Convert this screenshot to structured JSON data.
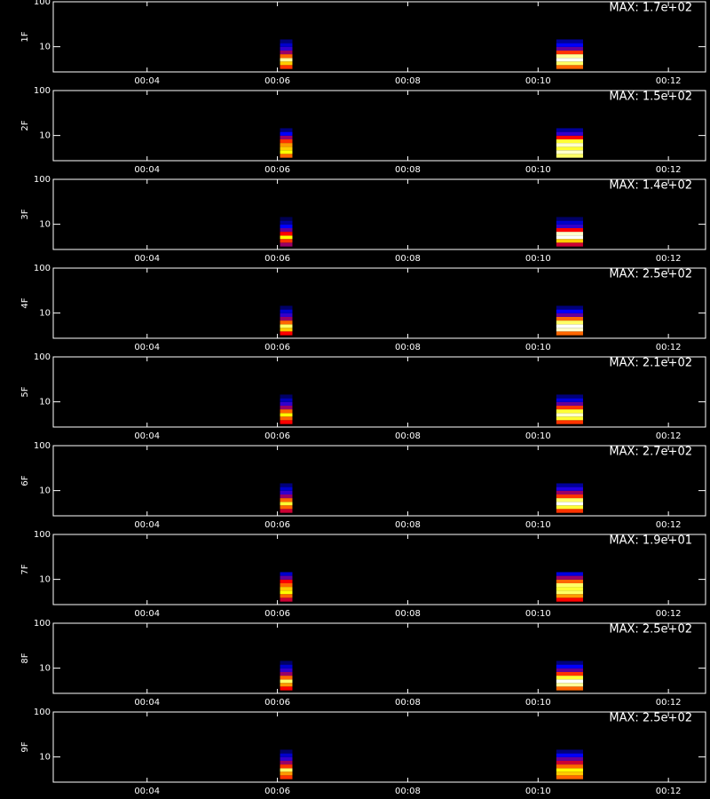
{
  "colormap": [
    "#000000",
    "#0000ff",
    "#ff0000",
    "#ffff00",
    "#ffffff"
  ],
  "chart_data": [
    {
      "type": "spectrogram",
      "ylabel": "1F",
      "annotation": "MAX: 1.7e+02",
      "log_y": true,
      "xlim": [
        2.56,
        12.57
      ],
      "ylim": [
        2.75,
        100
      ],
      "xticks": [
        {
          "value": 4,
          "label": "00:04"
        },
        {
          "value": 6,
          "label": "00:06"
        },
        {
          "value": 8,
          "label": "00:08"
        },
        {
          "value": 10,
          "label": "00:10"
        },
        {
          "value": 12,
          "label": "00:12"
        }
      ],
      "yticks": [
        10,
        100
      ],
      "bins": [
        3.2,
        3.9,
        4.7,
        5.6,
        6.8,
        8.2,
        9.9,
        12,
        14.5
      ],
      "bursts": [
        {
          "x": [
            6.04,
            6.23
          ],
          "intensity": [
            0.55,
            0.7,
            0.9,
            0.6,
            0.4,
            0.3,
            0.2,
            0.12
          ]
        },
        {
          "x": [
            10.28,
            10.69
          ],
          "intensity": [
            0.6,
            0.85,
            1,
            0.9,
            0.55,
            0.35,
            0.25,
            0.15
          ]
        }
      ]
    },
    {
      "type": "spectrogram",
      "ylabel": "2F",
      "annotation": "MAX: 1.5e+02",
      "log_y": true,
      "xlim": [
        2.56,
        12.57
      ],
      "ylim": [
        2.75,
        100
      ],
      "xticks": [
        {
          "value": 4,
          "label": "00:04"
        },
        {
          "value": 6,
          "label": "00:06"
        },
        {
          "value": 8,
          "label": "00:08"
        },
        {
          "value": 10,
          "label": "00:10"
        },
        {
          "value": 12,
          "label": "00:12"
        }
      ],
      "yticks": [
        10,
        100
      ],
      "bins": [
        3.2,
        3.9,
        4.7,
        5.6,
        6.8,
        8.2,
        9.9,
        12,
        14.5
      ],
      "bursts": [
        {
          "x": [
            6.04,
            6.23
          ],
          "intensity": [
            0.6,
            0.75,
            0.7,
            0.65,
            0.55,
            0.4,
            0.25,
            0.12
          ]
        },
        {
          "x": [
            10.28,
            10.69
          ],
          "intensity": [
            0.85,
            0.95,
            0.8,
            0.95,
            0.8,
            0.5,
            0.3,
            0.15
          ]
        }
      ]
    },
    {
      "type": "spectrogram",
      "ylabel": "3F",
      "annotation": "MAX: 1.4e+02",
      "log_y": true,
      "xlim": [
        2.56,
        12.57
      ],
      "ylim": [
        2.75,
        100
      ],
      "xticks": [
        {
          "value": 4,
          "label": "00:04"
        },
        {
          "value": 6,
          "label": "00:06"
        },
        {
          "value": 8,
          "label": "00:08"
        },
        {
          "value": 10,
          "label": "00:10"
        },
        {
          "value": 12,
          "label": "00:12"
        }
      ],
      "yticks": [
        10,
        100
      ],
      "bins": [
        3.2,
        3.9,
        4.7,
        5.6,
        6.8,
        8.2,
        9.9,
        12,
        14.5
      ],
      "bursts": [
        {
          "x": [
            6.04,
            6.23
          ],
          "intensity": [
            0.4,
            0.55,
            0.75,
            0.5,
            0.35,
            0.25,
            0.15,
            0.08
          ]
        },
        {
          "x": [
            10.28,
            10.69
          ],
          "intensity": [
            0.45,
            0.7,
            1,
            0.95,
            0.5,
            0.3,
            0.2,
            0.1
          ]
        }
      ]
    },
    {
      "type": "spectrogram",
      "ylabel": "4F",
      "annotation": "MAX: 2.5e+02",
      "log_y": true,
      "xlim": [
        2.56,
        12.57
      ],
      "ylim": [
        2.75,
        100
      ],
      "xticks": [
        {
          "value": 4,
          "label": "00:04"
        },
        {
          "value": 6,
          "label": "00:06"
        },
        {
          "value": 8,
          "label": "00:08"
        },
        {
          "value": 10,
          "label": "00:10"
        },
        {
          "value": 12,
          "label": "00:12"
        }
      ],
      "yticks": [
        10,
        100
      ],
      "bins": [
        3.2,
        3.9,
        4.7,
        5.6,
        6.8,
        8.2,
        9.9,
        12,
        14.5
      ],
      "bursts": [
        {
          "x": [
            6.04,
            6.23
          ],
          "intensity": [
            0.5,
            0.7,
            0.85,
            0.6,
            0.4,
            0.3,
            0.2,
            0.1
          ]
        },
        {
          "x": [
            10.28,
            10.69
          ],
          "intensity": [
            0.6,
            0.95,
            1,
            0.85,
            0.6,
            0.35,
            0.25,
            0.12
          ]
        }
      ]
    },
    {
      "type": "spectrogram",
      "ylabel": "5F",
      "annotation": "MAX: 2.1e+02",
      "log_y": true,
      "xlim": [
        2.56,
        12.57
      ],
      "ylim": [
        2.75,
        100
      ],
      "xticks": [
        {
          "value": 4,
          "label": "00:04"
        },
        {
          "value": 6,
          "label": "00:06"
        },
        {
          "value": 8,
          "label": "00:08"
        },
        {
          "value": 10,
          "label": "00:10"
        },
        {
          "value": 12,
          "label": "00:12"
        }
      ],
      "yticks": [
        10,
        100
      ],
      "bins": [
        3.2,
        3.9,
        4.7,
        5.6,
        6.8,
        8.2,
        9.9,
        12,
        14.5
      ],
      "bursts": [
        {
          "x": [
            6.04,
            6.23
          ],
          "intensity": [
            0.5,
            0.6,
            0.75,
            0.6,
            0.4,
            0.3,
            0.18,
            0.1
          ]
        },
        {
          "x": [
            10.28,
            10.69
          ],
          "intensity": [
            0.55,
            0.8,
            0.95,
            0.8,
            0.55,
            0.35,
            0.22,
            0.12
          ]
        }
      ]
    },
    {
      "type": "spectrogram",
      "ylabel": "6F",
      "annotation": "MAX: 2.7e+02",
      "log_y": true,
      "xlim": [
        2.56,
        12.57
      ],
      "ylim": [
        2.75,
        100
      ],
      "xticks": [
        {
          "value": 4,
          "label": "00:04"
        },
        {
          "value": 6,
          "label": "00:06"
        },
        {
          "value": 8,
          "label": "00:08"
        },
        {
          "value": 10,
          "label": "00:10"
        },
        {
          "value": 12,
          "label": "00:12"
        }
      ],
      "yticks": [
        10,
        100
      ],
      "bins": [
        3.2,
        3.9,
        4.7,
        5.6,
        6.8,
        8.2,
        9.9,
        12,
        14.5
      ],
      "bursts": [
        {
          "x": [
            6.04,
            6.23
          ],
          "intensity": [
            0.45,
            0.6,
            0.8,
            0.6,
            0.4,
            0.3,
            0.2,
            0.12
          ]
        },
        {
          "x": [
            10.28,
            10.69
          ],
          "intensity": [
            0.55,
            0.8,
            1,
            0.85,
            0.55,
            0.4,
            0.28,
            0.15
          ]
        }
      ]
    },
    {
      "type": "spectrogram",
      "ylabel": "7F",
      "annotation": "MAX: 1.9e+01",
      "log_y": true,
      "xlim": [
        2.56,
        12.57
      ],
      "ylim": [
        2.75,
        100
      ],
      "xticks": [
        {
          "value": 4,
          "label": "00:04"
        },
        {
          "value": 6,
          "label": "00:06"
        },
        {
          "value": 8,
          "label": "00:08"
        },
        {
          "value": 10,
          "label": "00:10"
        },
        {
          "value": 12,
          "label": "00:12"
        }
      ],
      "yticks": [
        10,
        100
      ],
      "bins": [
        3.2,
        3.9,
        4.7,
        5.6,
        6.8,
        8.2,
        9.9,
        12,
        14.5
      ],
      "bursts": [
        {
          "x": [
            6.04,
            6.23
          ],
          "intensity": [
            0.45,
            0.6,
            0.75,
            0.7,
            0.6,
            0.5,
            0.35,
            0.2
          ]
        },
        {
          "x": [
            10.28,
            10.69
          ],
          "intensity": [
            0.5,
            0.65,
            0.85,
            0.8,
            0.85,
            0.6,
            0.4,
            0.22
          ]
        }
      ]
    },
    {
      "type": "spectrogram",
      "ylabel": "8F",
      "annotation": "MAX: 2.5e+02",
      "log_y": true,
      "xlim": [
        2.56,
        12.57
      ],
      "ylim": [
        2.75,
        100
      ],
      "xticks": [
        {
          "value": 4,
          "label": "00:04"
        },
        {
          "value": 6,
          "label": "00:06"
        },
        {
          "value": 8,
          "label": "00:08"
        },
        {
          "value": 10,
          "label": "00:10"
        },
        {
          "value": 12,
          "label": "00:12"
        }
      ],
      "yticks": [
        10,
        100
      ],
      "bins": [
        3.2,
        3.9,
        4.7,
        5.6,
        6.8,
        8.2,
        9.9,
        12,
        14.5
      ],
      "bursts": [
        {
          "x": [
            6.04,
            6.23
          ],
          "intensity": [
            0.5,
            0.65,
            0.85,
            0.6,
            0.4,
            0.3,
            0.2,
            0.1
          ]
        },
        {
          "x": [
            10.28,
            10.69
          ],
          "intensity": [
            0.6,
            0.9,
            1,
            0.8,
            0.55,
            0.35,
            0.25,
            0.12
          ]
        }
      ]
    },
    {
      "type": "spectrogram",
      "ylabel": "9F",
      "annotation": "MAX: 2.5e+02",
      "log_y": true,
      "xlim": [
        2.56,
        12.57
      ],
      "ylim": [
        2.75,
        100
      ],
      "xticks": [
        {
          "value": 4,
          "label": "00:04"
        },
        {
          "value": 6,
          "label": "00:06"
        },
        {
          "value": 8,
          "label": "00:08"
        },
        {
          "value": 10,
          "label": "00:10"
        },
        {
          "value": 12,
          "label": "00:12"
        }
      ],
      "yticks": [
        10,
        100
      ],
      "bins": [
        3.2,
        3.9,
        4.7,
        5.6,
        6.8,
        8.2,
        9.9,
        12,
        14.5
      ],
      "bursts": [
        {
          "x": [
            6.04,
            6.23
          ],
          "intensity": [
            0.55,
            0.65,
            0.85,
            0.55,
            0.4,
            0.3,
            0.2,
            0.1
          ]
        },
        {
          "x": [
            10.28,
            10.69
          ],
          "intensity": [
            0.6,
            0.7,
            0.75,
            0.6,
            0.45,
            0.35,
            0.25,
            0.12
          ]
        }
      ]
    }
  ]
}
